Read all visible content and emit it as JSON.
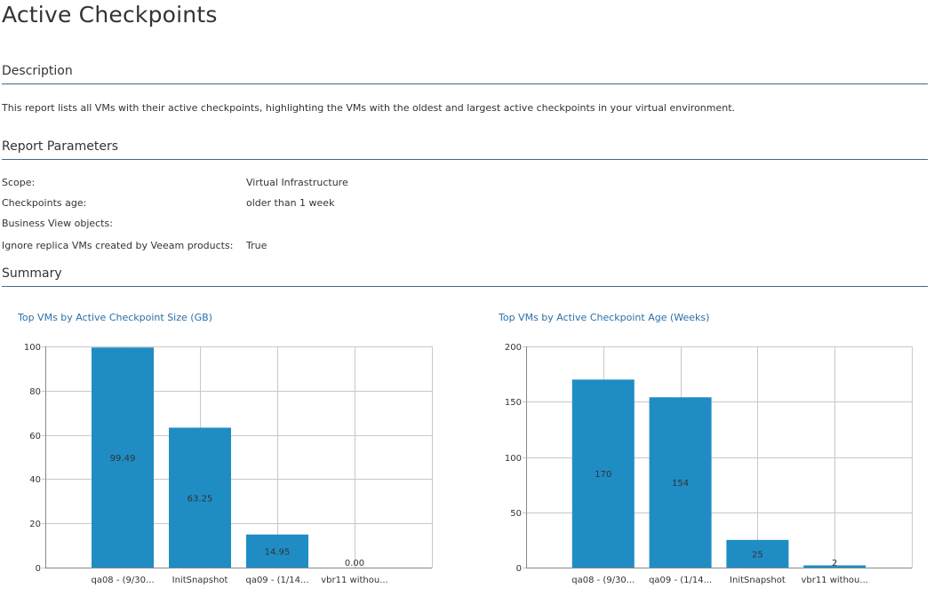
{
  "page": {
    "title": "Active Checkpoints"
  },
  "sections": {
    "description": "Description",
    "parameters": "Report Parameters",
    "summary": "Summary"
  },
  "description_text": "This report lists all VMs with their active checkpoints, highlighting the VMs with the oldest and largest active checkpoints in your virtual environment.",
  "parameters": [
    {
      "label": "Scope:",
      "value": "Virtual Infrastructure"
    },
    {
      "label": "Checkpoints age:",
      "value": "older than 1 week"
    },
    {
      "label": "Business View objects:",
      "value": ""
    },
    {
      "label": "Ignore replica VMs created by Veeam products:",
      "value": "True"
    }
  ],
  "colors": {
    "bar": "#1f8dc4",
    "grid": "#c8c8c8",
    "axis": "#888888",
    "title": "#2c6fa6",
    "rule": "#3c6b8f"
  },
  "chart_data": [
    {
      "type": "bar",
      "title": "Top VMs by Active Checkpoint Size  (GB)",
      "categories": [
        "qa08 - (9/30...",
        "InitSnapshot",
        "qa09 - (1/14...",
        "vbr11 withou..."
      ],
      "series": [
        {
          "values": [
            99.49,
            63.25,
            14.95,
            0.0
          ]
        }
      ],
      "data_labels": [
        "99.49",
        "63.25",
        "14.95",
        "0.00"
      ],
      "y_ticks": [
        0,
        20,
        40,
        60,
        80,
        100
      ],
      "ylim": [
        0,
        100
      ],
      "xlabel": "",
      "ylabel": "",
      "grid": true
    },
    {
      "type": "bar",
      "title": "Top VMs by Active Checkpoint Age (Weeks)",
      "categories": [
        "qa08 - (9/30...",
        "qa09 - (1/14...",
        "InitSnapshot",
        "vbr11 withou..."
      ],
      "series": [
        {
          "values": [
            170,
            154,
            25,
            2
          ]
        }
      ],
      "data_labels": [
        "170",
        "154",
        "25",
        "2"
      ],
      "y_ticks": [
        0,
        50,
        100,
        150,
        200
      ],
      "ylim": [
        0,
        200
      ],
      "xlabel": "",
      "ylabel": "",
      "grid": true
    }
  ]
}
